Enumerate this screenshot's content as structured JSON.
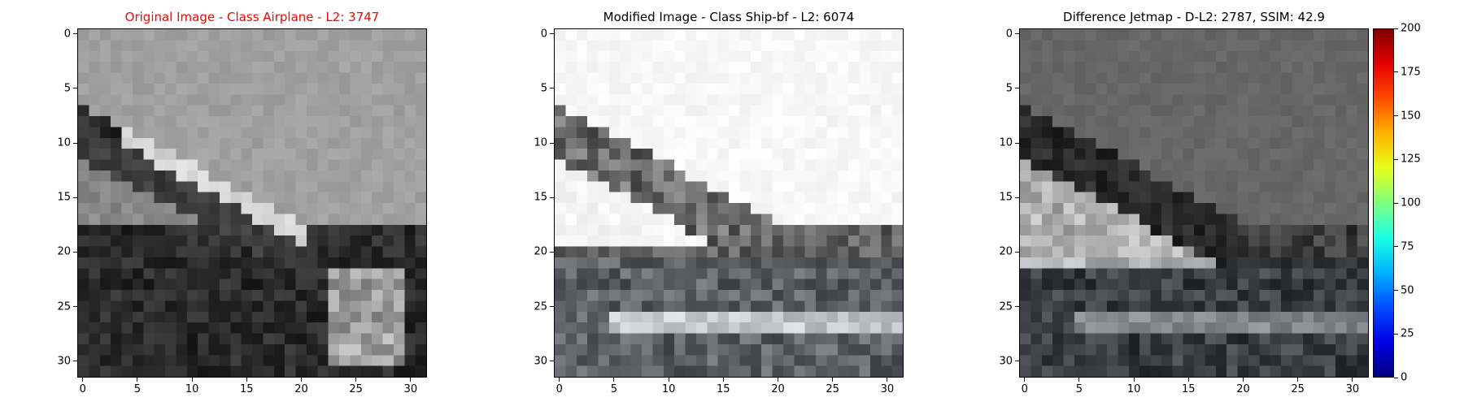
{
  "chart_data": [
    {
      "type": "heatmap",
      "title": "Original Image - Class Airplane - L2: 3747",
      "title_color": "#ff0000",
      "xticks": [
        0,
        5,
        10,
        15,
        20,
        25,
        30
      ],
      "yticks": [
        0,
        5,
        10,
        15,
        20,
        25,
        30
      ],
      "xlim": [
        -0.5,
        31.5
      ],
      "ylim": [
        31.5,
        -0.5
      ],
      "colormap": "gray"
    },
    {
      "type": "heatmap",
      "title": "Modified Image - Class Ship-bf - L2: 6074",
      "title_color": "#000000",
      "xticks": [
        0,
        5,
        10,
        15,
        20,
        25,
        30
      ],
      "yticks": [
        0,
        5,
        10,
        15,
        20,
        25,
        30
      ],
      "xlim": [
        -0.5,
        31.5
      ],
      "ylim": [
        31.5,
        -0.5
      ],
      "colormap": "gray"
    },
    {
      "type": "heatmap",
      "title": "Difference Jetmap - D-L2: 2787, SSIM: 42.9",
      "title_color": "#000000",
      "xticks": [
        0,
        5,
        10,
        15,
        20,
        25,
        30
      ],
      "yticks": [
        0,
        5,
        10,
        15,
        20,
        25,
        30
      ],
      "xlim": [
        -0.5,
        31.5
      ],
      "ylim": [
        31.5,
        -0.5
      ],
      "colormap": "gray",
      "colorbar": {
        "colormap": "jet",
        "range": [
          0,
          200
        ],
        "ticks": [
          0,
          25,
          50,
          75,
          100,
          125,
          150,
          175,
          200
        ]
      }
    }
  ]
}
